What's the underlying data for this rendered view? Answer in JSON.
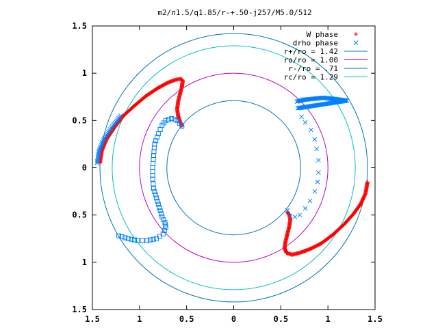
{
  "chart_data": {
    "type": "scatter",
    "title": "m2/n1.5/q1.85/r-+.50-j257/M5.0/512",
    "xlim": [
      -1.5,
      1.5
    ],
    "ylim": [
      -1.5,
      1.5
    ],
    "x_ticks": [
      {
        "value": -1.5,
        "label": "1.5"
      },
      {
        "value": -1.0,
        "label": "1"
      },
      {
        "value": -0.5,
        "label": "0.5"
      },
      {
        "value": 0.0,
        "label": "0"
      },
      {
        "value": 0.5,
        "label": "0.5"
      },
      {
        "value": 1.0,
        "label": "1"
      },
      {
        "value": 1.5,
        "label": "1.5"
      }
    ],
    "y_ticks": [
      {
        "value": 1.5,
        "label": "1.5"
      },
      {
        "value": 1.0,
        "label": "1"
      },
      {
        "value": 0.5,
        "label": "0.5"
      },
      {
        "value": 0.0,
        "label": "0"
      },
      {
        "value": -0.5,
        "label": "0.5"
      },
      {
        "value": -1.0,
        "label": "1"
      },
      {
        "value": -1.5,
        "label": "1.5"
      }
    ],
    "grid": false,
    "legend_position": "top-right",
    "series": [
      {
        "name": "W phase",
        "marker": "plus",
        "color": "#ff0000",
        "arms": [
          [
            [
              -1.42,
              0.05
            ],
            [
              -1.4,
              0.18
            ],
            [
              -1.35,
              0.3
            ],
            [
              -1.27,
              0.42
            ],
            [
              -1.17,
              0.55
            ],
            [
              -1.05,
              0.66
            ],
            [
              -0.93,
              0.76
            ],
            [
              -0.81,
              0.84
            ],
            [
              -0.7,
              0.9
            ],
            [
              -0.62,
              0.93
            ],
            [
              -0.56,
              0.94
            ],
            [
              -0.54,
              0.92
            ],
            [
              -0.55,
              0.86
            ],
            [
              -0.57,
              0.78
            ],
            [
              -0.59,
              0.7
            ],
            [
              -0.6,
              0.62
            ],
            [
              -0.59,
              0.55
            ],
            [
              -0.57,
              0.49
            ],
            [
              -0.55,
              0.44
            ]
          ],
          [
            [
              1.42,
              -0.15
            ],
            [
              1.4,
              -0.27
            ],
            [
              1.35,
              -0.38
            ],
            [
              1.27,
              -0.49
            ],
            [
              1.17,
              -0.6
            ],
            [
              1.05,
              -0.71
            ],
            [
              0.93,
              -0.8
            ],
            [
              0.81,
              -0.86
            ],
            [
              0.7,
              -0.9
            ],
            [
              0.62,
              -0.92
            ],
            [
              0.56,
              -0.9
            ],
            [
              0.54,
              -0.85
            ],
            [
              0.55,
              -0.78
            ],
            [
              0.57,
              -0.7
            ],
            [
              0.59,
              -0.62
            ],
            [
              0.6,
              -0.55
            ],
            [
              0.59,
              -0.5
            ],
            [
              0.57,
              -0.47
            ]
          ]
        ]
      },
      {
        "name": "drho phase",
        "marker": "cross",
        "color": "#0080ff",
        "arms": [
          [
            [
              0.67,
              0.7
            ],
            [
              0.75,
              0.72
            ],
            [
              0.85,
              0.73
            ],
            [
              0.95,
              0.74
            ],
            [
              1.05,
              0.73
            ],
            [
              1.13,
              0.72
            ],
            [
              1.2,
              0.71
            ],
            [
              0.68,
              0.63
            ],
            [
              0.72,
              0.54
            ],
            [
              0.76,
              0.48
            ],
            [
              0.82,
              0.4
            ],
            [
              0.86,
              0.3
            ],
            [
              0.88,
              0.2
            ],
            [
              0.9,
              0.08
            ],
            [
              0.9,
              -0.05
            ],
            [
              0.89,
              -0.15
            ],
            [
              0.86,
              -0.25
            ],
            [
              0.81,
              -0.35
            ],
            [
              0.76,
              -0.43
            ],
            [
              0.7,
              -0.5
            ],
            [
              0.65,
              -0.52
            ],
            [
              0.6,
              -0.51
            ],
            [
              0.57,
              -0.45
            ]
          ],
          [
            [
              -1.45,
              0.05
            ],
            [
              -1.43,
              0.18
            ],
            [
              -1.38,
              0.3
            ],
            [
              -1.3,
              0.42
            ],
            [
              -1.2,
              0.55
            ]
          ]
        ]
      },
      {
        "name": "drho phase (box)",
        "marker": "box",
        "color": "#0080ff",
        "arms": [
          [
            [
              -0.55,
              0.44
            ],
            [
              -0.6,
              0.5
            ],
            [
              -0.66,
              0.52
            ],
            [
              -0.72,
              0.5
            ],
            [
              -0.76,
              0.45
            ],
            [
              -0.8,
              0.36
            ],
            [
              -0.84,
              0.25
            ],
            [
              -0.85,
              0.13
            ],
            [
              -0.86,
              0.0
            ],
            [
              -0.86,
              -0.12
            ],
            [
              -0.85,
              -0.22
            ],
            [
              -0.82,
              -0.32
            ],
            [
              -0.79,
              -0.42
            ],
            [
              -0.76,
              -0.52
            ],
            [
              -0.73,
              -0.58
            ],
            [
              -0.72,
              -0.63
            ],
            [
              -0.75,
              -0.7
            ],
            [
              -0.82,
              -0.75
            ],
            [
              -0.92,
              -0.77
            ],
            [
              -1.02,
              -0.77
            ],
            [
              -1.12,
              -0.75
            ],
            [
              -1.22,
              -0.72
            ]
          ]
        ]
      }
    ],
    "circles": [
      {
        "name": "r+/ro = 1.42",
        "radius": 1.42,
        "color": "#0072bd"
      },
      {
        "name": "ro/ro = 1.00",
        "radius": 1.0,
        "color": "#bf00bf"
      },
      {
        "name": "r-/ro = .71",
        "radius": 0.71,
        "color": "#0072bd"
      },
      {
        "name": "rc/ro = 1.29",
        "radius": 1.29,
        "color": "#00bfbf"
      }
    ]
  }
}
